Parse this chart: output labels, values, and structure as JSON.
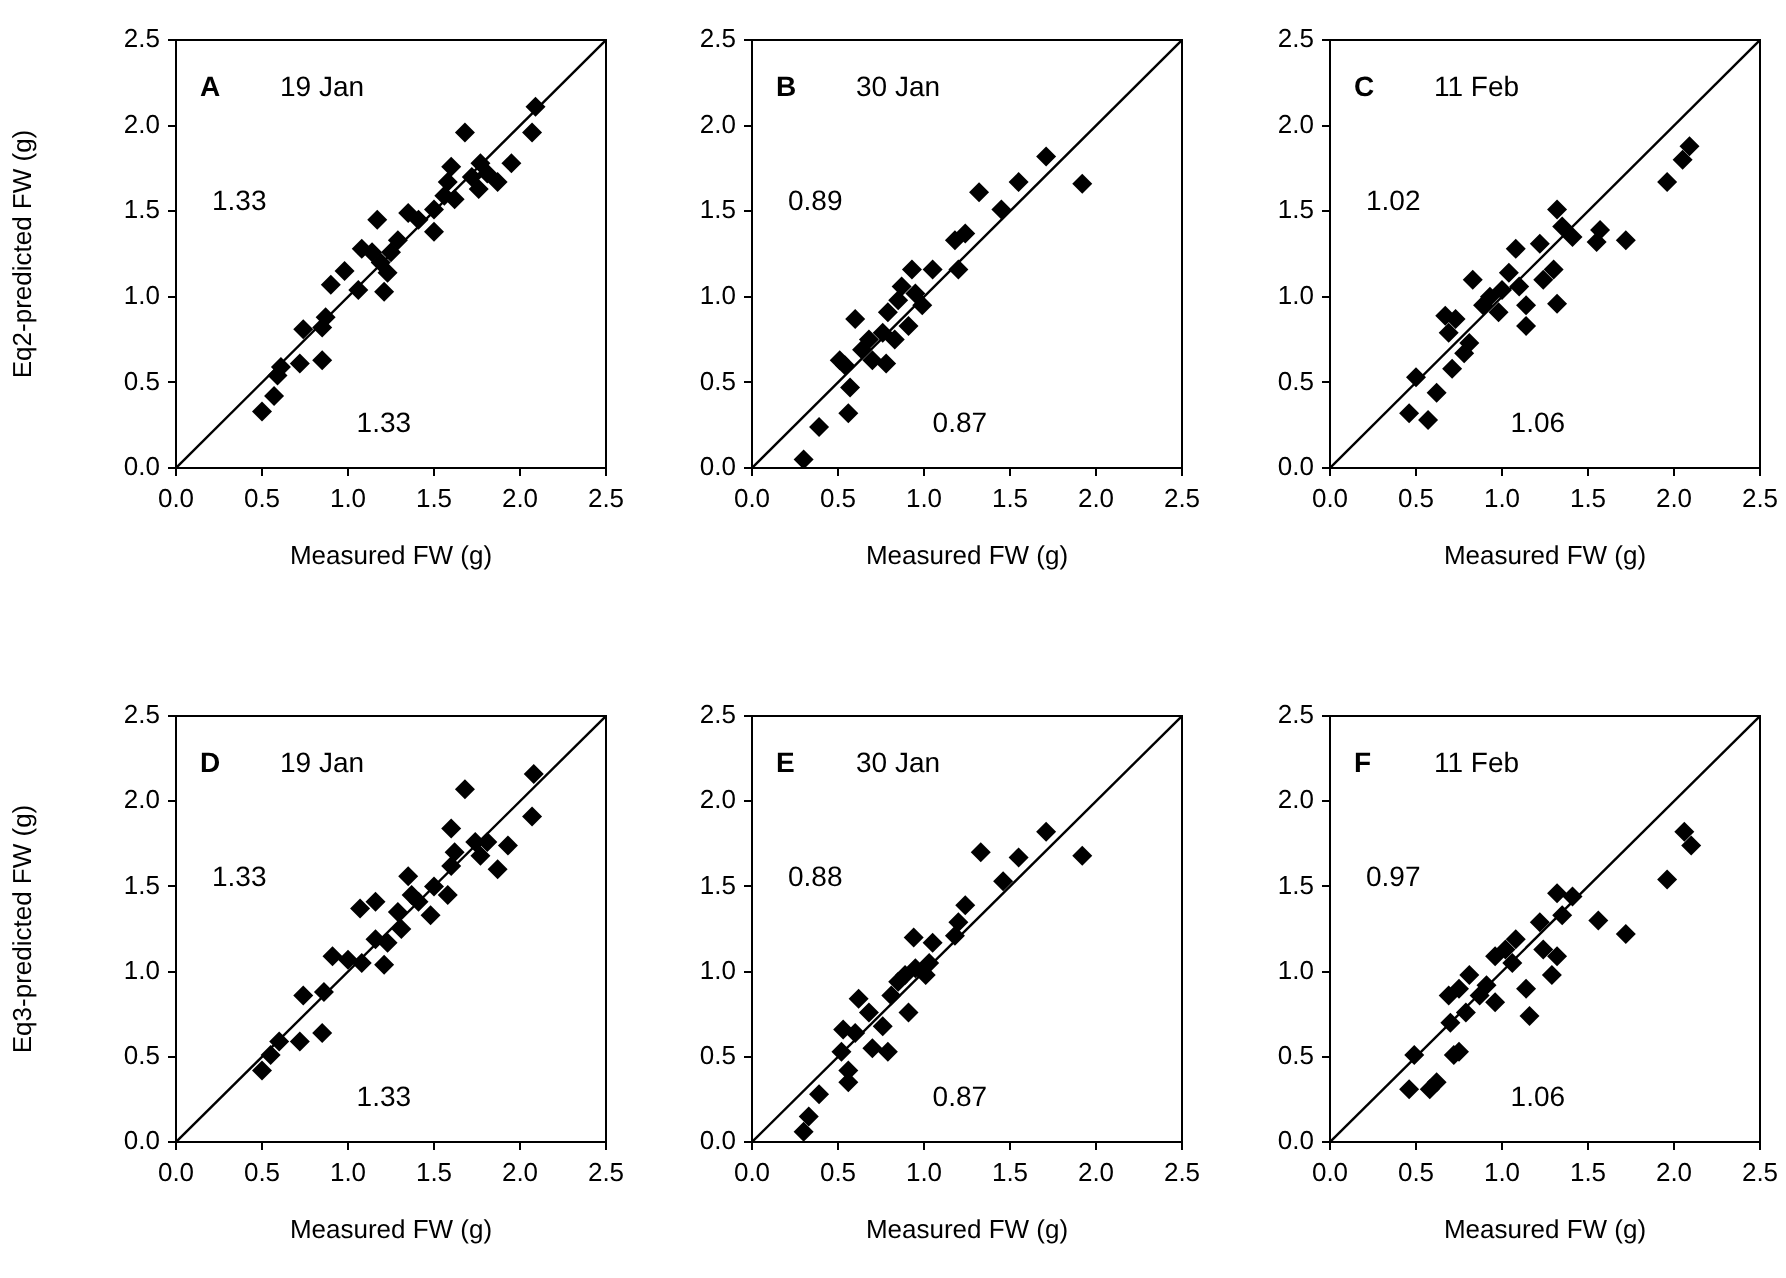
{
  "chart_data": [
    {
      "type": "scatter",
      "title": "A",
      "subtitle": "19 Jan",
      "ylabel": "Eq2-predicted FW (g)",
      "xlabel": "Measured FW (g)",
      "annotations": [
        "1.33",
        "1.33"
      ],
      "xlim": [
        0,
        2.5
      ],
      "ylim": [
        0,
        2.5
      ],
      "xticks": [
        {
          "value": 0,
          "label": "0.0"
        },
        0.5,
        {
          "value": 1,
          "label": "1.0"
        },
        1.5,
        {
          "value": 2,
          "label": "2.0"
        },
        2.5
      ],
      "yticks": [
        {
          "value": 0,
          "label": "0.0"
        },
        0.5,
        {
          "value": 1,
          "label": "1.0"
        },
        1.5,
        {
          "value": 2,
          "label": "2.0"
        },
        2.5
      ],
      "series": [
        {
          "type": "scatter",
          "marker": "diamond",
          "color": "#000000",
          "x": [
            0.5,
            0.57,
            0.59,
            0.61,
            0.72,
            0.74,
            0.85,
            0.85,
            0.87,
            0.9,
            0.98,
            1.06,
            1.08,
            1.14,
            1.17,
            1.19,
            1.21,
            1.23,
            1.25,
            1.29,
            1.35,
            1.41,
            1.5,
            1.5,
            1.56,
            1.58,
            1.6,
            1.62,
            1.68,
            1.72,
            1.76,
            1.77,
            1.81,
            1.87,
            1.95,
            2.07,
            2.09
          ],
          "values": [
            0.33,
            0.42,
            0.54,
            0.59,
            0.61,
            0.81,
            0.63,
            0.82,
            0.88,
            1.07,
            1.15,
            1.04,
            1.28,
            1.26,
            1.45,
            1.2,
            1.03,
            1.14,
            1.26,
            1.33,
            1.49,
            1.45,
            1.38,
            1.51,
            1.59,
            1.67,
            1.76,
            1.57,
            1.96,
            1.7,
            1.63,
            1.78,
            1.72,
            1.67,
            1.78,
            1.96,
            2.11
          ]
        },
        {
          "type": "line",
          "marker": "none",
          "color": "#000000",
          "x": [
            0,
            2.5
          ],
          "values": [
            0,
            2.5
          ]
        }
      ]
    },
    {
      "type": "scatter",
      "title": "B",
      "subtitle": "30 Jan",
      "xlabel": "Measured FW (g)",
      "annotations": [
        "0.89",
        "0.87"
      ],
      "xlim": [
        0,
        2.5
      ],
      "ylim": [
        0,
        2.5
      ],
      "xticks": [
        {
          "value": 0,
          "label": "0.0"
        },
        0.5,
        {
          "value": 1,
          "label": "1.0"
        },
        1.5,
        {
          "value": 2,
          "label": "2.0"
        },
        2.5
      ],
      "yticks": [
        {
          "value": 0,
          "label": "0.0"
        },
        0.5,
        {
          "value": 1,
          "label": "1.0"
        },
        1.5,
        {
          "value": 2,
          "label": "2.0"
        },
        2.5
      ],
      "series": [
        {
          "type": "scatter",
          "marker": "diamond",
          "color": "#000000",
          "x": [
            0.3,
            0.39,
            0.56,
            0.57,
            0.51,
            0.54,
            0.6,
            0.64,
            0.68,
            0.7,
            0.78,
            0.76,
            0.79,
            0.83,
            0.85,
            0.87,
            0.91,
            0.93,
            0.95,
            0.99,
            1.05,
            1.18,
            1.2,
            1.24,
            1.32,
            1.45,
            1.55,
            1.71,
            1.92
          ],
          "values": [
            0.05,
            0.24,
            0.32,
            0.47,
            0.63,
            0.6,
            0.87,
            0.69,
            0.75,
            0.63,
            0.61,
            0.79,
            0.91,
            0.75,
            0.98,
            1.06,
            0.83,
            1.16,
            1.02,
            0.95,
            1.16,
            1.33,
            1.16,
            1.37,
            1.61,
            1.51,
            1.67,
            1.82,
            1.66
          ]
        },
        {
          "type": "line",
          "marker": "none",
          "color": "#000000",
          "x": [
            0,
            2.5
          ],
          "values": [
            0,
            2.5
          ]
        }
      ]
    },
    {
      "type": "scatter",
      "title": "C",
      "subtitle": "11 Feb",
      "xlabel": "Measured FW (g)",
      "annotations": [
        "1.02",
        "1.06"
      ],
      "xlim": [
        0,
        2.5
      ],
      "ylim": [
        0,
        2.5
      ],
      "xticks": [
        {
          "value": 0,
          "label": "0.0"
        },
        0.5,
        {
          "value": 1,
          "label": "1.0"
        },
        1.5,
        {
          "value": 2,
          "label": "2.0"
        },
        2.5
      ],
      "yticks": [
        {
          "value": 0,
          "label": "0.0"
        },
        0.5,
        {
          "value": 1,
          "label": "1.0"
        },
        1.5,
        {
          "value": 2,
          "label": "2.0"
        },
        2.5
      ],
      "series": [
        {
          "type": "scatter",
          "marker": "diamond",
          "color": "#000000",
          "x": [
            0.46,
            0.5,
            0.57,
            0.62,
            0.71,
            0.69,
            0.67,
            0.73,
            0.78,
            0.81,
            0.83,
            0.89,
            0.93,
            0.98,
            1.0,
            1.04,
            1.08,
            1.1,
            1.14,
            1.14,
            1.22,
            1.24,
            1.3,
            1.32,
            1.32,
            1.35,
            1.41,
            1.55,
            1.57,
            1.72,
            1.96,
            2.05,
            2.09
          ],
          "values": [
            0.32,
            0.53,
            0.28,
            0.44,
            0.58,
            0.79,
            0.89,
            0.87,
            0.67,
            0.73,
            1.1,
            0.95,
            1.0,
            0.91,
            1.04,
            1.14,
            1.28,
            1.06,
            0.95,
            0.83,
            1.31,
            1.1,
            1.16,
            0.96,
            1.51,
            1.41,
            1.35,
            1.32,
            1.39,
            1.33,
            1.67,
            1.8,
            1.88
          ]
        },
        {
          "type": "line",
          "marker": "none",
          "color": "#000000",
          "x": [
            0,
            2.5
          ],
          "values": [
            0,
            2.5
          ]
        }
      ]
    },
    {
      "type": "scatter",
      "title": "D",
      "subtitle": "19 Jan",
      "ylabel": "Eq3-predicted FW (g)",
      "xlabel": "Measured FW (g)",
      "annotations": [
        "1.33",
        "1.33"
      ],
      "xlim": [
        0,
        2.5
      ],
      "ylim": [
        0,
        2.5
      ],
      "xticks": [
        {
          "value": 0,
          "label": "0.0"
        },
        0.5,
        {
          "value": 1,
          "label": "1.0"
        },
        1.5,
        {
          "value": 2,
          "label": "2.0"
        },
        2.5
      ],
      "yticks": [
        {
          "value": 0,
          "label": "0.0"
        },
        0.5,
        {
          "value": 1,
          "label": "1.0"
        },
        1.5,
        {
          "value": 2,
          "label": "2.0"
        },
        2.5
      ],
      "series": [
        {
          "type": "scatter",
          "marker": "diamond",
          "color": "#000000",
          "x": [
            0.5,
            0.55,
            0.6,
            0.72,
            0.74,
            0.85,
            0.86,
            0.91,
            1.0,
            1.08,
            1.07,
            1.16,
            1.16,
            1.21,
            1.23,
            1.29,
            1.31,
            1.35,
            1.37,
            1.41,
            1.48,
            1.5,
            1.58,
            1.6,
            1.6,
            1.62,
            1.68,
            1.74,
            1.77,
            1.81,
            1.87,
            1.93,
            2.07,
            2.08
          ],
          "values": [
            0.42,
            0.51,
            0.59,
            0.59,
            0.86,
            0.64,
            0.88,
            1.09,
            1.07,
            1.05,
            1.37,
            1.41,
            1.19,
            1.04,
            1.17,
            1.35,
            1.25,
            1.56,
            1.45,
            1.41,
            1.33,
            1.5,
            1.45,
            1.62,
            1.84,
            1.7,
            2.07,
            1.76,
            1.68,
            1.76,
            1.6,
            1.74,
            1.91,
            2.16
          ]
        },
        {
          "type": "line",
          "marker": "none",
          "color": "#000000",
          "x": [
            0,
            2.5
          ],
          "values": [
            0,
            2.5
          ]
        }
      ]
    },
    {
      "type": "scatter",
      "title": "E",
      "subtitle": "30 Jan",
      "xlabel": "Measured FW (g)",
      "annotations": [
        "0.88",
        "0.87"
      ],
      "xlim": [
        0,
        2.5
      ],
      "ylim": [
        0,
        2.5
      ],
      "xticks": [
        {
          "value": 0,
          "label": "0.0"
        },
        0.5,
        {
          "value": 1,
          "label": "1.0"
        },
        1.5,
        {
          "value": 2,
          "label": "2.0"
        },
        2.5
      ],
      "yticks": [
        {
          "value": 0,
          "label": "0.0"
        },
        0.5,
        {
          "value": 1,
          "label": "1.0"
        },
        1.5,
        {
          "value": 2,
          "label": "2.0"
        },
        2.5
      ],
      "series": [
        {
          "type": "scatter",
          "marker": "diamond",
          "color": "#000000",
          "x": [
            0.3,
            0.33,
            0.39,
            0.56,
            0.56,
            0.52,
            0.53,
            0.6,
            0.62,
            0.68,
            0.7,
            0.79,
            0.76,
            0.81,
            0.85,
            0.91,
            0.89,
            0.95,
            1.01,
            1.03,
            0.94,
            1.05,
            1.18,
            1.2,
            1.24,
            1.33,
            1.46,
            1.55,
            1.71,
            1.92
          ],
          "values": [
            0.06,
            0.15,
            0.28,
            0.35,
            0.42,
            0.53,
            0.66,
            0.64,
            0.84,
            0.76,
            0.55,
            0.53,
            0.68,
            0.86,
            0.94,
            0.76,
            0.98,
            1.02,
            0.98,
            1.05,
            1.2,
            1.17,
            1.21,
            1.29,
            1.39,
            1.7,
            1.53,
            1.67,
            1.82,
            1.68
          ]
        },
        {
          "type": "line",
          "marker": "none",
          "color": "#000000",
          "x": [
            0,
            2.5
          ],
          "values": [
            0,
            2.5
          ]
        }
      ]
    },
    {
      "type": "scatter",
      "title": "F",
      "subtitle": "11 Feb",
      "xlabel": "Measured FW (g)",
      "annotations": [
        "0.97",
        "1.06"
      ],
      "xlim": [
        0,
        2.5
      ],
      "ylim": [
        0,
        2.5
      ],
      "xticks": [
        {
          "value": 0,
          "label": "0.0"
        },
        0.5,
        {
          "value": 1,
          "label": "1.0"
        },
        1.5,
        {
          "value": 2,
          "label": "2.0"
        },
        2.5
      ],
      "yticks": [
        {
          "value": 0,
          "label": "0.0"
        },
        0.5,
        {
          "value": 1,
          "label": "1.0"
        },
        1.5,
        {
          "value": 2,
          "label": "2.0"
        },
        2.5
      ],
      "series": [
        {
          "type": "scatter",
          "marker": "diamond",
          "color": "#000000",
          "x": [
            0.46,
            0.49,
            0.58,
            0.62,
            0.72,
            0.75,
            0.7,
            0.69,
            0.75,
            0.79,
            0.81,
            0.87,
            0.91,
            0.96,
            0.96,
            1.02,
            1.06,
            1.08,
            1.14,
            1.16,
            1.22,
            1.24,
            1.29,
            1.32,
            1.32,
            1.35,
            1.41,
            1.56,
            1.72,
            1.96,
            2.06,
            2.1
          ],
          "values": [
            0.31,
            0.51,
            0.31,
            0.35,
            0.51,
            0.53,
            0.7,
            0.86,
            0.9,
            0.76,
            0.98,
            0.86,
            0.92,
            0.82,
            1.09,
            1.13,
            1.05,
            1.19,
            0.9,
            0.74,
            1.29,
            1.13,
            0.98,
            1.09,
            1.46,
            1.33,
            1.44,
            1.3,
            1.22,
            1.54,
            1.82,
            1.74
          ]
        },
        {
          "type": "line",
          "marker": "none",
          "color": "#000000",
          "x": [
            0,
            2.5
          ],
          "values": [
            0,
            2.5
          ]
        }
      ]
    }
  ]
}
